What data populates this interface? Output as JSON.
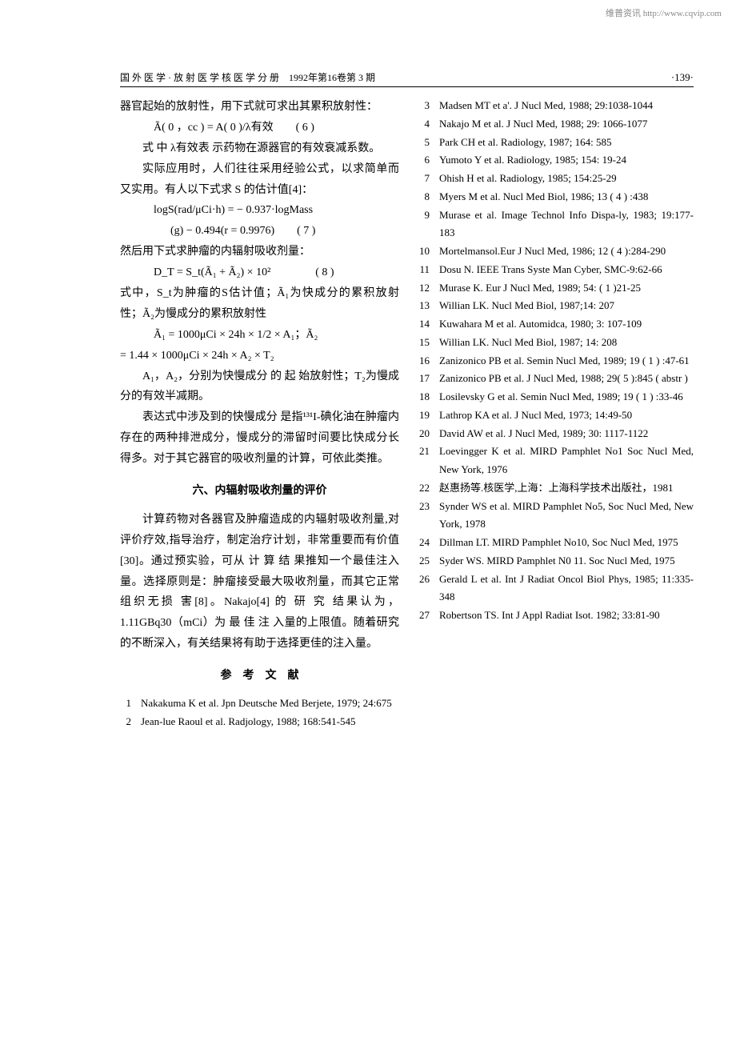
{
  "watermark": "维普资讯 http://www.cqvip.com",
  "header": {
    "left": "国 外 医 学 · 放 射 医 学 核 医 学 分 册　1992年第16卷第 3 期",
    "right": "·139·"
  },
  "body": {
    "p1": "器官起始的放射性，用下式就可求出其累积放射性：",
    "f1": "Ã( 0 ，cc ) = A( 0 )/λ有效　　( 6 )",
    "p2": "式 中 λ有效表 示药物在源器官的有效衰减系数。",
    "p3": "实际应用时，人们往往采用经验公式，以求简单而又实用。有人以下式求 S 的估计值[4]：",
    "f2a": "logS(rad/μCi·h) = − 0.937·logMass",
    "f2b": "(g) − 0.494(r = 0.9976)　　( 7 )",
    "p4": "然后用下式求肿瘤的内辐射吸收剂量：",
    "f3": "D_T = S_t(Ã₁ + Ã₂) × 10²　　　　( 8 )",
    "p5": "式中，S_t为肿瘤的S估计值；Ã₁为快成分的累积放射性；Ã₂为慢成分的累积放射性",
    "f4a": "Ã₁ = 1000μCi × 24h × 1/2 × A₁；Ã₂",
    "f4b": "= 1.44 × 1000μCi × 24h × A₂ × T₂",
    "p6": "A₁，A₂，分别为快慢成分 的 起 始放射性；T₂为慢成分的有效半减期。",
    "p7": "表达式中涉及到的快慢成分 是指¹³¹I-碘化油在肿瘤内存在的两种排泄成分，慢成分的滞留时间要比快成分长得多。对于其它器官的吸收剂量的计算，可依此类推。",
    "section6": "六、内辐射吸收剂量的评价",
    "p8": "计算药物对各器官及肿瘤造成的内辐射吸收剂量,对评价疗效,指导治疗，制定治疗计划，非常重要而有价值[30]。通过预实验，可从 计 算 结 果推知一个最佳注入量。选择原则是：肿瘤接受最大吸收剂量，而其它正常组织无损 害[8]。Nakajo[4] 的 研 究 结果认为，1.11GBq30（mCi）为 最 佳 注 入量的上限值。随着研究的不断深入，有关结果将有助于选择更佳的注入量。",
    "refTitle": "参　考　文　献"
  },
  "refsLeft": [
    {
      "n": "1",
      "t": "Nakakuma K et al. Jpn Deutsche Med Berjete, 1979; 24:675"
    },
    {
      "n": "2",
      "t": "Jean-lue Raoul et al. Radjology, 1988; 168:541-545"
    }
  ],
  "refsRight": [
    {
      "n": "3",
      "t": "Madsen MT et a'. J Nucl Med, 1988; 29:1038-1044"
    },
    {
      "n": "4",
      "t": "Nakajo M et al. J Nucl Med, 1988; 29: 1066-1077"
    },
    {
      "n": "5",
      "t": "Park CH et al. Radiology, 1987; 164: 585"
    },
    {
      "n": "6",
      "t": "Yumoto Y et al. Radiology, 1985; 154: 19-24"
    },
    {
      "n": "7",
      "t": "Ohish H et al. Radiology, 1985; 154:25-29"
    },
    {
      "n": "8",
      "t": "Myers M et al. Nucl Med Biol, 1986; 13 ( 4 ) :438"
    },
    {
      "n": "9",
      "t": "Murase et al. Image Technol Info Dispa-ly, 1983; 19:177-183"
    },
    {
      "n": "10",
      "t": "Mortelmansol.Eur J Nucl Med, 1986; 12 ( 4 ):284-290"
    },
    {
      "n": "11",
      "t": "Dosu N. IEEE Trans Syste Man Cyber, SMC-9:62-66"
    },
    {
      "n": "12",
      "t": "Murase K. Eur J Nucl Med, 1989; 54: ( 1 )21-25"
    },
    {
      "n": "13",
      "t": "Willian LK. Nucl Med Biol, 1987;14: 207"
    },
    {
      "n": "14",
      "t": "Kuwahara M et al. Automidca, 1980; 3: 107-109"
    },
    {
      "n": "15",
      "t": "Willian LK. Nucl Med Biol, 1987; 14: 208"
    },
    {
      "n": "16",
      "t": "Zanizonico PB et al. Semin Nucl Med, 1989; 19 ( 1 ) :47-61"
    },
    {
      "n": "17",
      "t": "Zanizonico PB et al. J Nucl Med, 1988; 29( 5 ):845 ( abstr )"
    },
    {
      "n": "18",
      "t": "Losilevsky G et al. Semin Nucl Med, 1989; 19 ( 1 ) :33-46"
    },
    {
      "n": "19",
      "t": "Lathrop KA et al. J Nucl Med, 1973; 14:49-50"
    },
    {
      "n": "20",
      "t": "David AW et al. J Nucl Med, 1989; 30: 1117-1122"
    },
    {
      "n": "21",
      "t": "Loevingger K et al. MIRD Pamphlet No1 Soc Nucl Med, New York, 1976"
    },
    {
      "n": "22",
      "t": "赵惠扬等.核医学,上海：上海科学技术出版社，1981"
    },
    {
      "n": "23",
      "t": "Synder WS et al. MIRD Pamphlet No5, Soc Nucl Med, New York, 1978"
    },
    {
      "n": "24",
      "t": "Dillman LT. MIRD Pamphlet No10, Soc Nucl Med, 1975"
    },
    {
      "n": "25",
      "t": "Syder WS. MIRD Pamphlet N0 11. Soc Nucl Med, 1975"
    },
    {
      "n": "26",
      "t": "Gerald L et al. Int J Radiat Oncol Biol Phys, 1985; 11:335-348"
    },
    {
      "n": "27",
      "t": "Robertson TS. Int J Appl Radiat Isot. 1982; 33:81-90"
    }
  ]
}
